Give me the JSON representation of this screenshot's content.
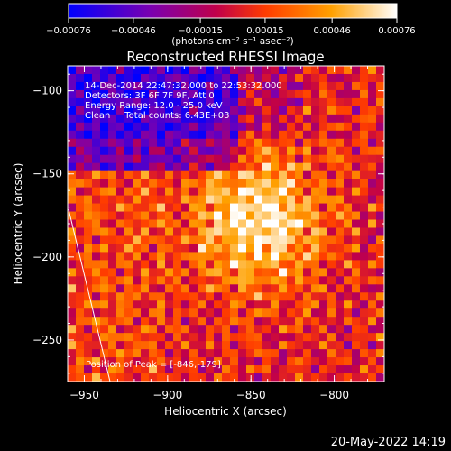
{
  "chart_data": {
    "type": "heatmap",
    "title": "Reconstructed RHESSI Image",
    "xlabel": "Heliocentric X (arcsec)",
    "ylabel": "Heliocentric Y (arcsec)",
    "xlim": [
      -960,
      -770
    ],
    "ylim": [
      -275,
      -85
    ],
    "x_ticks": [
      -950,
      -900,
      -850,
      -800
    ],
    "y_ticks": [
      -100,
      -150,
      -200,
      -250
    ],
    "x_tick_labels": [
      "−950",
      "−900",
      "−850",
      "−800"
    ],
    "y_tick_labels": [
      "−100",
      "−150",
      "−200",
      "−250"
    ],
    "colorbar": {
      "range": [
        -0.00076,
        0.00076
      ],
      "ticks": [
        -0.00076,
        -0.00046,
        -0.00015,
        0.00015,
        0.00046,
        0.00076
      ],
      "tick_labels": [
        "−0.00076",
        "−0.00046",
        "−0.00015",
        "0.00015",
        "0.00046",
        "0.00076"
      ],
      "unit_label": "(photons cm⁻² s⁻¹ asec⁻²)",
      "colors": [
        "#0000ff",
        "#7a00b0",
        "#c0004a",
        "#ff3c00",
        "#ffa000",
        "#ffffff"
      ]
    },
    "annotations": [
      "14-Dec-2014 22:47:32.000 to 22:53:32.000",
      "Detectors: 3F 6F 7F 9F, Att 0",
      "Energy Range: 12.0 - 25.0 keV",
      "Clean     Total counts: 6.43E+03"
    ],
    "peak_label": "Position of Peak = [-846,-179]",
    "peak_position": [
      -846,
      -179
    ],
    "grid": false
  },
  "footer": {
    "date": "20-May-2022 14:19"
  }
}
